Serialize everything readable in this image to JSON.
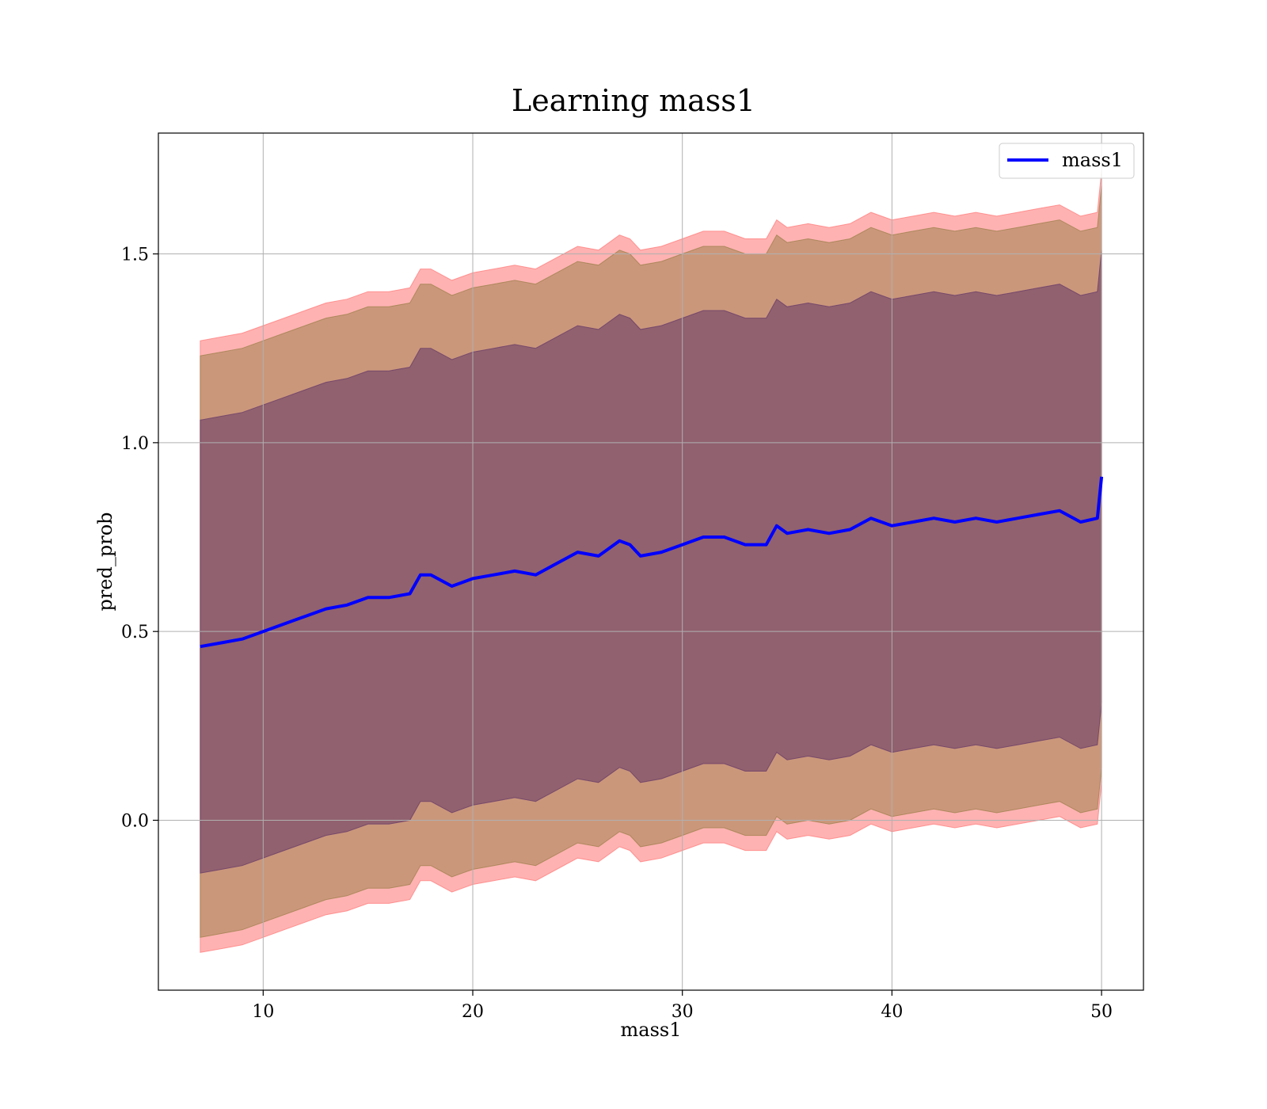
{
  "chart_data": {
    "type": "line",
    "title": "Learning mass1",
    "xlabel": "mass1",
    "ylabel": "pred_prob",
    "xlim": [
      5,
      52
    ],
    "ylim": [
      -0.45,
      1.82
    ],
    "xticks": [
      10,
      20,
      30,
      40,
      50
    ],
    "xtick_labels": [
      "10",
      "20",
      "30",
      "40",
      "50"
    ],
    "yticks": [
      0.0,
      0.5,
      1.0,
      1.5
    ],
    "ytick_labels": [
      "0.0",
      "0.5",
      "1.0",
      "1.5"
    ],
    "grid": true,
    "legend_position": "top-right",
    "series": [
      {
        "name": "mass1",
        "color": "#0000ff",
        "x": [
          7,
          8,
          9,
          10,
          11,
          12,
          13,
          14,
          15,
          16,
          17,
          17.5,
          18,
          19,
          19.5,
          20,
          21,
          22,
          23,
          24,
          25,
          26,
          27,
          27.5,
          28,
          29,
          30,
          31,
          32,
          33,
          34,
          34.5,
          35,
          36,
          37,
          38,
          39,
          40,
          41,
          42,
          43,
          44,
          45,
          46,
          47,
          48,
          49,
          49.8,
          50
        ],
        "y": [
          0.46,
          0.47,
          0.48,
          0.5,
          0.52,
          0.54,
          0.56,
          0.57,
          0.59,
          0.59,
          0.6,
          0.65,
          0.65,
          0.62,
          0.63,
          0.64,
          0.65,
          0.66,
          0.65,
          0.68,
          0.71,
          0.7,
          0.74,
          0.73,
          0.7,
          0.71,
          0.73,
          0.75,
          0.75,
          0.73,
          0.73,
          0.78,
          0.76,
          0.77,
          0.76,
          0.77,
          0.8,
          0.78,
          0.79,
          0.8,
          0.79,
          0.8,
          0.79,
          0.8,
          0.81,
          0.82,
          0.79,
          0.8,
          0.91
        ]
      }
    ],
    "bands": [
      {
        "color": "#ff7f7f",
        "opacity": 0.6,
        "half_width": 0.81
      },
      {
        "color": "#a0824f",
        "opacity": 0.55,
        "half_width": 0.77
      },
      {
        "color": "#6a3d68",
        "opacity": 0.6,
        "half_width": 0.6
      }
    ]
  }
}
